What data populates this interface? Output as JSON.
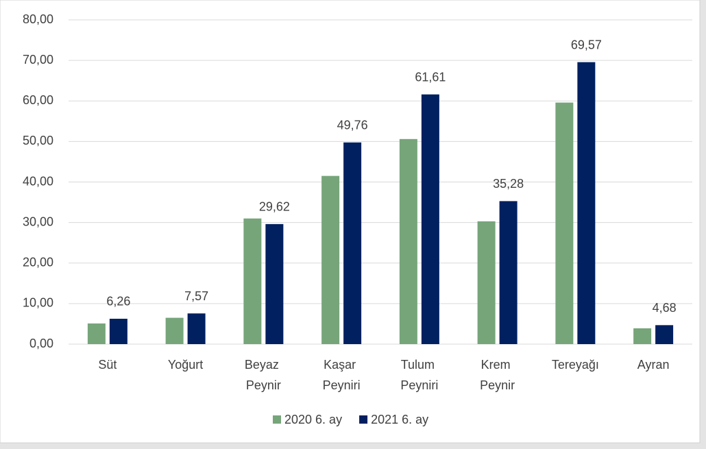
{
  "chart_data": {
    "type": "bar",
    "categories": [
      "Süt",
      "Yoğurt",
      "Beyaz Peynir",
      "Kaşar Peyniri",
      "Tulum Peyniri",
      "Krem Peynir",
      "Tereyağı",
      "Ayran"
    ],
    "series": [
      {
        "name": "2020 6. ay",
        "color": "#76a57a",
        "values": [
          5.1,
          6.5,
          31.0,
          41.5,
          50.6,
          30.3,
          59.6,
          3.9
        ]
      },
      {
        "name": "2021 6. ay",
        "color": "#002060",
        "values": [
          6.26,
          7.57,
          29.62,
          49.76,
          61.61,
          35.28,
          69.57,
          4.68
        ],
        "value_labels": [
          "6,26",
          "7,57",
          "29,62",
          "49,76",
          "61,61",
          "35,28",
          "69,57",
          "4,68"
        ]
      }
    ],
    "ylim": [
      0,
      80
    ],
    "yticks": [
      {
        "value": 0,
        "label": "0,00"
      },
      {
        "value": 10,
        "label": "10,00"
      },
      {
        "value": 20,
        "label": "20,00"
      },
      {
        "value": 30,
        "label": "30,00"
      },
      {
        "value": 40,
        "label": "40,00"
      },
      {
        "value": 50,
        "label": "50,00"
      },
      {
        "value": 60,
        "label": "60,00"
      },
      {
        "value": 70,
        "label": "70,00"
      },
      {
        "value": 80,
        "label": "80,00"
      }
    ],
    "grid": true,
    "legend": "bottom"
  }
}
